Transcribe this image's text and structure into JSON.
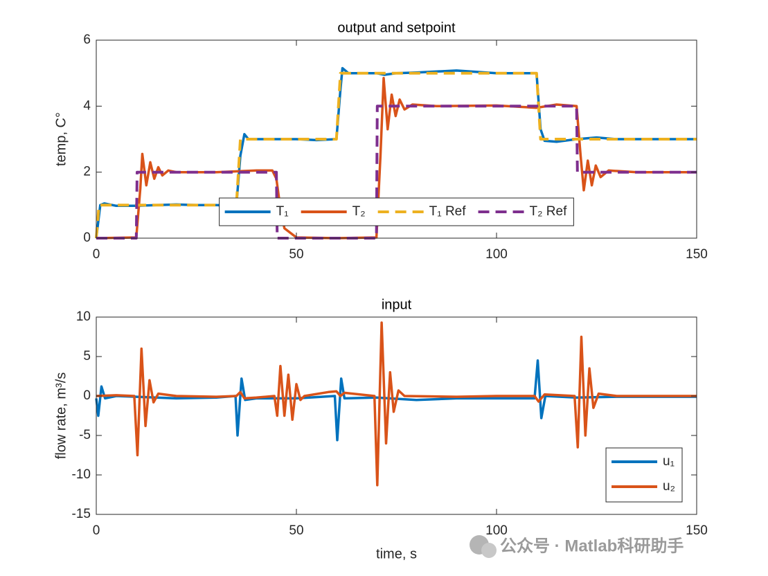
{
  "chart_data": [
    {
      "type": "line",
      "title": "output and setpoint",
      "ylabel": "temp, C°",
      "xlim": [
        0,
        150
      ],
      "xticks": [
        0,
        50,
        100,
        150
      ],
      "ylim": [
        0,
        6
      ],
      "yticks": [
        0,
        2,
        4,
        6
      ],
      "legend": "south-horizontal",
      "series": [
        {
          "name": "T₁",
          "color": "#0072BD",
          "dash": false,
          "x": [
            0,
            1,
            2,
            5,
            10,
            15,
            20,
            25,
            30,
            35,
            36,
            37,
            38,
            45,
            50,
            55,
            60,
            61,
            61.5,
            63,
            70,
            72,
            75,
            80,
            90,
            100,
            110,
            111,
            112,
            115,
            120,
            125,
            130,
            140,
            150
          ],
          "values": [
            0,
            1.0,
            1.05,
            0.98,
            0.98,
            1.0,
            1.02,
            1.0,
            1.0,
            0.98,
            2.5,
            3.15,
            3.0,
            3.0,
            3.0,
            2.97,
            3.0,
            4.5,
            5.15,
            5.0,
            5.0,
            4.95,
            5.0,
            5.02,
            5.08,
            5.0,
            5.0,
            3.3,
            2.95,
            2.92,
            3.0,
            3.05,
            3.0,
            3.0,
            3.0
          ]
        },
        {
          "name": "T₂",
          "color": "#D95319",
          "dash": false,
          "x": [
            0,
            10,
            11,
            11.5,
            12.5,
            13.5,
            14.5,
            15.5,
            16.5,
            18,
            20,
            30,
            40,
            44,
            45,
            46,
            47,
            50,
            60,
            70,
            71,
            71.8,
            72.8,
            73.8,
            74.8,
            75.8,
            77,
            79,
            85,
            100,
            110,
            115,
            120,
            121,
            121.8,
            122.8,
            123.8,
            124.8,
            126,
            128,
            135,
            150
          ],
          "values": [
            0,
            0.02,
            1.5,
            2.55,
            1.6,
            2.3,
            1.8,
            2.15,
            1.9,
            2.05,
            2.0,
            2.0,
            2.05,
            2.05,
            1.8,
            0.9,
            0.3,
            0.02,
            0.0,
            0.02,
            2.5,
            4.85,
            3.3,
            4.35,
            3.7,
            4.2,
            3.9,
            4.05,
            4.0,
            4.02,
            3.95,
            4.05,
            4.0,
            2.5,
            1.45,
            2.35,
            1.6,
            2.2,
            1.85,
            2.05,
            2.0,
            2.0
          ]
        },
        {
          "name": "T₁ Ref",
          "color": "#EDB120",
          "dash": true,
          "x": [
            0,
            0.7,
            35,
            36,
            60,
            61,
            110,
            111,
            150
          ],
          "values": [
            0,
            1,
            1,
            3,
            3,
            5,
            5,
            3,
            3
          ]
        },
        {
          "name": "T₂ Ref",
          "color": "#7E2F8E",
          "dash": true,
          "x": [
            0,
            10,
            10.2,
            45,
            45.2,
            70,
            70.2,
            120,
            120.2,
            150
          ],
          "values": [
            0,
            0,
            2,
            2,
            0,
            0,
            4,
            4,
            2,
            2
          ]
        }
      ]
    },
    {
      "type": "line",
      "title": "input",
      "ylabel": "flow rate, m³/s",
      "xlabel": "time, s",
      "xlim": [
        0,
        150
      ],
      "xticks": [
        0,
        50,
        100,
        150
      ],
      "ylim": [
        -15,
        10
      ],
      "yticks": [
        -15,
        -10,
        -5,
        0,
        5,
        10
      ],
      "legend": "southeast-vertical",
      "series": [
        {
          "name": "u₁",
          "color": "#0072BD",
          "dash": false,
          "x": [
            0,
            0.5,
            1.3,
            2.2,
            5,
            10,
            20,
            30,
            34.8,
            35.3,
            36.3,
            37.2,
            40,
            50,
            59.6,
            60.2,
            61.2,
            62,
            70,
            80,
            90,
            100,
            109.5,
            110.3,
            111.2,
            112.2,
            120,
            130,
            140,
            150
          ],
          "values": [
            -0.3,
            -2.5,
            1.2,
            -0.3,
            0,
            -0.1,
            -0.3,
            -0.2,
            0,
            -5,
            2.2,
            -0.5,
            -0.3,
            -0.3,
            0,
            -5.6,
            2.2,
            -0.3,
            -0.2,
            -0.5,
            -0.3,
            -0.3,
            -0.3,
            4.5,
            -2.8,
            0,
            -0.2,
            -0.1,
            -0.1,
            -0.1
          ]
        },
        {
          "name": "u₂",
          "color": "#D95319",
          "dash": false,
          "x": [
            0,
            5,
            9.5,
            10.3,
            11.3,
            12.3,
            13.3,
            14.3,
            15.5,
            20,
            30,
            35,
            36,
            37,
            40,
            44.5,
            45.2,
            46,
            47,
            48,
            49,
            50,
            51,
            52,
            58,
            60,
            61,
            62,
            69.5,
            70.2,
            71.3,
            72.4,
            73.4,
            74.3,
            75.5,
            77,
            90,
            100,
            109.5,
            110.5,
            112,
            119.5,
            120.3,
            121.2,
            122.2,
            123.2,
            124.2,
            125.5,
            130,
            140,
            150
          ],
          "values": [
            0,
            0.1,
            0,
            -7.5,
            6,
            -3.8,
            2,
            -0.8,
            0.3,
            0,
            -0.1,
            0,
            0.5,
            -0.3,
            -0.2,
            0,
            -2.5,
            3.8,
            -2.5,
            2.7,
            -3.0,
            1.5,
            -0.5,
            0,
            0.5,
            0.6,
            0,
            0.4,
            0,
            -11.3,
            9.3,
            -6,
            3,
            -2,
            0.7,
            0,
            -0.1,
            0,
            0,
            -0.7,
            0.2,
            0,
            -6.5,
            7.5,
            -5,
            3.5,
            -1.5,
            0.3,
            0,
            0,
            0
          ]
        }
      ]
    }
  ],
  "watermark": "公众号 · Matlab科研助手"
}
